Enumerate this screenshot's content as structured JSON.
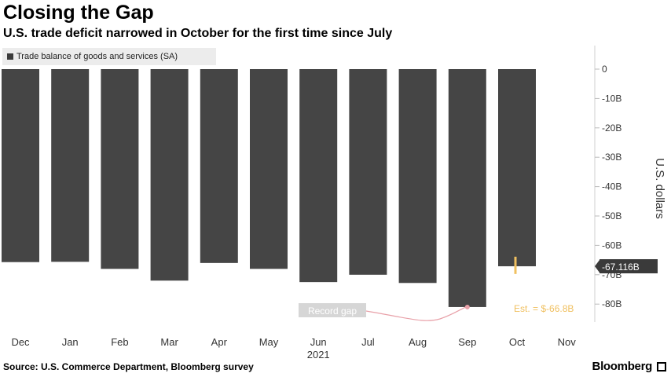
{
  "title": "Closing the Gap",
  "subtitle": "U.S. trade deficit narrowed in October for the first time since July",
  "legend_label": "Trade balance of goods and services (SA)",
  "source": "Source: U.S. Commerce Department, Bloomberg survey",
  "brand": "Bloomberg",
  "colors": {
    "bar": "#454545",
    "callout_bg": "#3a3a3a",
    "estimate": "#f0c060",
    "annotation": "#e8a0a8"
  },
  "chart_data": {
    "type": "bar",
    "categories": [
      "Dec",
      "Jan",
      "Feb",
      "Mar",
      "Apr",
      "May",
      "Jun",
      "Jul",
      "Aug",
      "Sep",
      "Oct",
      "Nov"
    ],
    "year_label": "2021",
    "values": [
      -65.7,
      -65.6,
      -68.0,
      -72.0,
      -66.0,
      -68.0,
      -72.5,
      -70.0,
      -72.8,
      -81.0,
      -67.116,
      null
    ],
    "series": [
      {
        "name": "Trade balance of goods and services (SA)",
        "values": [
          -65.7,
          -65.6,
          -68.0,
          -72.0,
          -66.0,
          -68.0,
          -72.5,
          -70.0,
          -72.8,
          -81.0,
          -67.116,
          null
        ]
      }
    ],
    "ylabel": "U.S. dollars",
    "yticks": [
      0,
      -10,
      -20,
      -30,
      -40,
      -50,
      -60,
      -70,
      -80
    ],
    "ytick_labels": [
      "0",
      "-10B",
      "-20B",
      "-30B",
      "-40B",
      "-50B",
      "-60B",
      "-70B",
      "-80B"
    ],
    "ylim": [
      -85,
      0
    ],
    "y_axis_side": "right",
    "last_value_label": "-67.116B",
    "estimate": {
      "category": "Oct",
      "value": -66.8,
      "label": "Est. = $-66.8B"
    },
    "annotation": {
      "category": "Sep",
      "label": "Record gap"
    }
  }
}
